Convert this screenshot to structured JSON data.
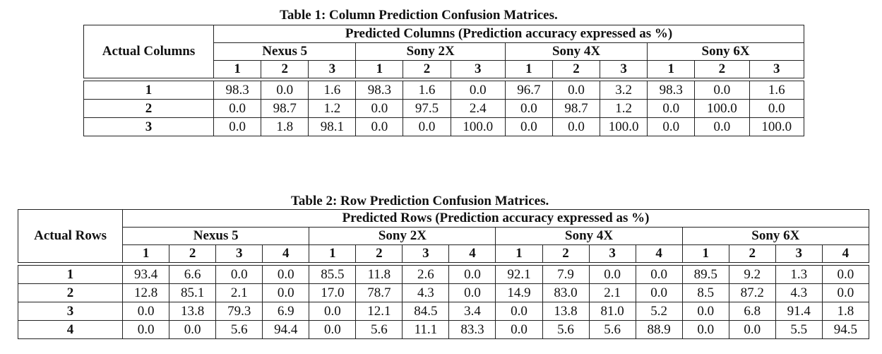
{
  "table1": {
    "caption": "Table 1: Column Prediction Confusion Matrices.",
    "corner_label": "Actual Columns",
    "group_header": "Predicted Columns (Prediction accuracy expressed as %)",
    "devices": [
      "Nexus 5",
      "Sony 2X",
      "Sony 4X",
      "Sony 6X"
    ],
    "sub_headers": [
      "1",
      "2",
      "3"
    ],
    "rows": [
      {
        "label": "1",
        "values": [
          "98.3",
          "0.0",
          "1.6",
          "98.3",
          "1.6",
          "0.0",
          "96.7",
          "0.0",
          "3.2",
          "98.3",
          "0.0",
          "1.6"
        ]
      },
      {
        "label": "2",
        "values": [
          "0.0",
          "98.7",
          "1.2",
          "0.0",
          "97.5",
          "2.4",
          "0.0",
          "98.7",
          "1.2",
          "0.0",
          "100.0",
          "0.0"
        ]
      },
      {
        "label": "3",
        "values": [
          "0.0",
          "1.8",
          "98.1",
          "0.0",
          "0.0",
          "100.0",
          "0.0",
          "0.0",
          "100.0",
          "0.0",
          "0.0",
          "100.0"
        ]
      }
    ]
  },
  "table2": {
    "caption": "Table 2: Row Prediction Confusion Matrices.",
    "corner_label": "Actual Rows",
    "group_header": "Predicted Rows (Prediction accuracy expressed as %)",
    "devices": [
      "Nexus 5",
      "Sony 2X",
      "Sony 4X",
      "Sony 6X"
    ],
    "sub_headers": [
      "1",
      "2",
      "3",
      "4"
    ],
    "rows": [
      {
        "label": "1",
        "values": [
          "93.4",
          "6.6",
          "0.0",
          "0.0",
          "85.5",
          "11.8",
          "2.6",
          "0.0",
          "92.1",
          "7.9",
          "0.0",
          "0.0",
          "89.5",
          "9.2",
          "1.3",
          "0.0"
        ]
      },
      {
        "label": "2",
        "values": [
          "12.8",
          "85.1",
          "2.1",
          "0.0",
          "17.0",
          "78.7",
          "4.3",
          "0.0",
          "14.9",
          "83.0",
          "2.1",
          "0.0",
          "8.5",
          "87.2",
          "4.3",
          "0.0"
        ]
      },
      {
        "label": "3",
        "values": [
          "0.0",
          "13.8",
          "79.3",
          "6.9",
          "0.0",
          "12.1",
          "84.5",
          "3.4",
          "0.0",
          "13.8",
          "81.0",
          "5.2",
          "0.0",
          "6.8",
          "91.4",
          "1.8"
        ]
      },
      {
        "label": "4",
        "values": [
          "0.0",
          "0.0",
          "5.6",
          "94.4",
          "0.0",
          "5.6",
          "11.1",
          "83.3",
          "0.0",
          "5.6",
          "5.6",
          "88.9",
          "0.0",
          "0.0",
          "5.5",
          "94.5"
        ]
      }
    ]
  }
}
